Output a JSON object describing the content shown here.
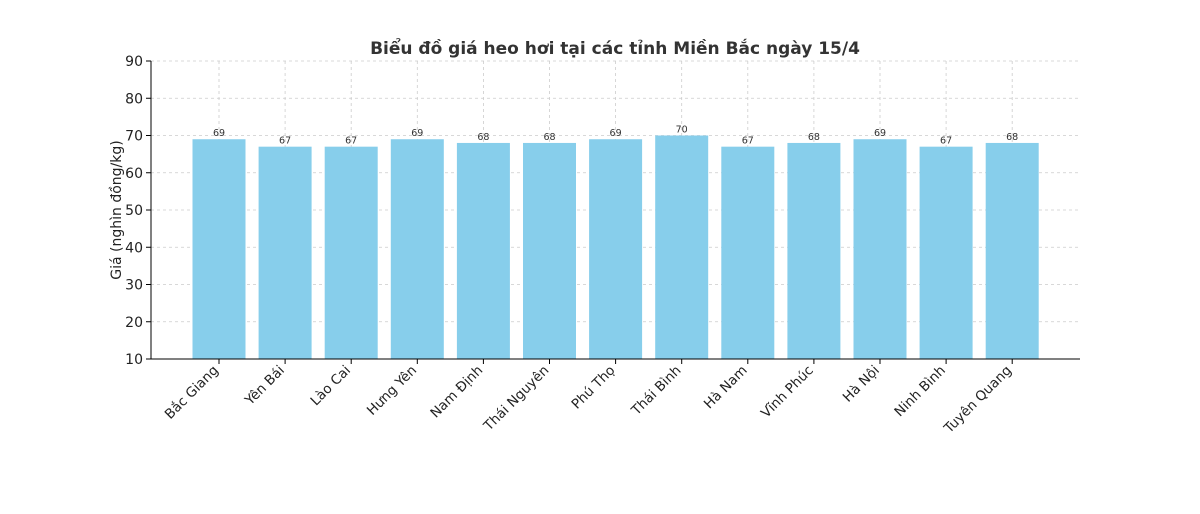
{
  "chart_data": {
    "type": "bar",
    "title": "Biểu đồ giá heo hơi tại các tỉnh Miền Bắc ngày 15/4",
    "xlabel": "",
    "ylabel": "Giá (nghìn đồng/kg)",
    "ylim": [
      10,
      90
    ],
    "yticks": [
      10,
      20,
      30,
      40,
      50,
      60,
      70,
      80,
      90
    ],
    "grid": true,
    "bar_color": "#87CEEB",
    "categories": [
      "Bắc Giang",
      "Yên Bái",
      "Lào Cai",
      "Hưng Yên",
      "Nam Định",
      "Thái Nguyên",
      "Phú Thọ",
      "Thái Bình",
      "Hà Nam",
      "Vĩnh Phúc",
      "Hà Nội",
      "Ninh Bình",
      "Tuyên Quang"
    ],
    "values": [
      69,
      67,
      67,
      69,
      68,
      68,
      69,
      70,
      67,
      68,
      69,
      67,
      68
    ]
  }
}
